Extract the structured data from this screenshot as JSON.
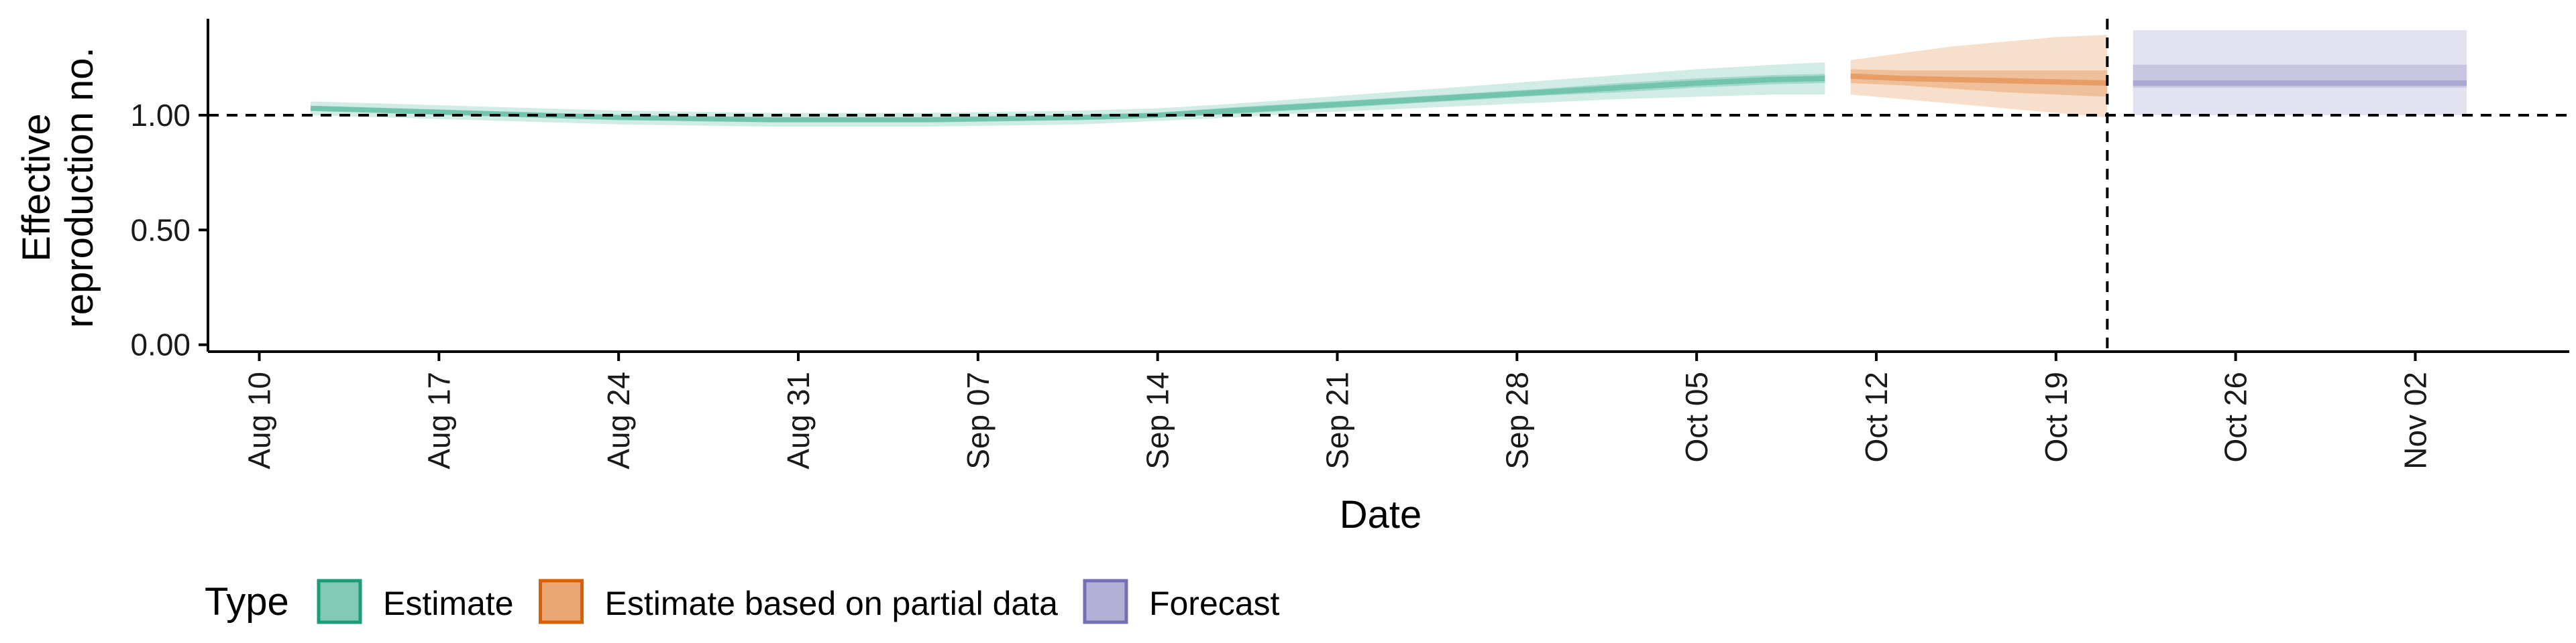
{
  "chart_data": {
    "type": "area",
    "title": "",
    "xlabel": "Date",
    "ylabel": [
      "Effective",
      "reproduction no."
    ],
    "x_ticks": [
      "Aug 10",
      "Aug 17",
      "Aug 24",
      "Aug 31",
      "Sep 07",
      "Sep 14",
      "Sep 21",
      "Sep 28",
      "Oct 05",
      "Oct 12",
      "Oct 19",
      "Oct 26",
      "Nov 02"
    ],
    "x_ticks_dates": [
      "2020-08-10",
      "2020-08-17",
      "2020-08-24",
      "2020-08-31",
      "2020-09-07",
      "2020-09-14",
      "2020-09-21",
      "2020-09-28",
      "2020-10-05",
      "2020-10-12",
      "2020-10-19",
      "2020-10-26",
      "2020-11-02"
    ],
    "xlim": [
      "2020-08-08",
      "2020-11-08"
    ],
    "y_ticks": [
      "0.00",
      "0.50",
      "1.00"
    ],
    "y_tick_values": [
      0,
      0.5,
      1.0
    ],
    "ylim": [
      -0.03,
      1.42
    ],
    "reference_line_y": 1.0,
    "forecast_start_line_x": "2020-10-21",
    "grid": false,
    "legend": {
      "title": "Type",
      "position": "bottom-left",
      "entries": [
        "Estimate",
        "Estimate based on partial data",
        "Forecast"
      ]
    },
    "colors": {
      "Estimate": "#1b9e77",
      "Estimate based on partial data": "#d95f02",
      "Forecast": "#7570b3"
    },
    "series": [
      {
        "name": "Estimate",
        "x": [
          "2020-08-12",
          "2020-08-15",
          "2020-08-18",
          "2020-08-21",
          "2020-08-24",
          "2020-08-27",
          "2020-08-30",
          "2020-09-02",
          "2020-09-05",
          "2020-09-08",
          "2020-09-11",
          "2020-09-14",
          "2020-09-17",
          "2020-09-20",
          "2020-09-23",
          "2020-09-26",
          "2020-09-29",
          "2020-10-02",
          "2020-10-05",
          "2020-10-08",
          "2020-10-10"
        ],
        "median": [
          1.03,
          1.02,
          1.01,
          1.0,
          0.99,
          0.985,
          0.98,
          0.98,
          0.98,
          0.985,
          0.99,
          1.0,
          1.02,
          1.04,
          1.06,
          1.08,
          1.1,
          1.12,
          1.14,
          1.155,
          1.16
        ],
        "lower_50": [
          1.02,
          1.01,
          1.0,
          0.99,
          0.98,
          0.975,
          0.97,
          0.97,
          0.97,
          0.975,
          0.98,
          0.99,
          1.005,
          1.025,
          1.045,
          1.065,
          1.085,
          1.1,
          1.12,
          1.135,
          1.14
        ],
        "upper_50": [
          1.04,
          1.03,
          1.02,
          1.01,
          1.0,
          0.995,
          0.99,
          0.99,
          0.99,
          0.995,
          1.0,
          1.01,
          1.035,
          1.055,
          1.075,
          1.095,
          1.115,
          1.14,
          1.16,
          1.175,
          1.18
        ],
        "lower_90": [
          1.0,
          0.99,
          0.98,
          0.97,
          0.96,
          0.955,
          0.95,
          0.95,
          0.95,
          0.955,
          0.96,
          0.975,
          0.99,
          1.01,
          1.025,
          1.04,
          1.055,
          1.07,
          1.08,
          1.09,
          1.09
        ],
        "upper_90": [
          1.06,
          1.05,
          1.04,
          1.03,
          1.02,
          1.015,
          1.01,
          1.01,
          1.01,
          1.015,
          1.02,
          1.03,
          1.05,
          1.075,
          1.1,
          1.125,
          1.15,
          1.175,
          1.2,
          1.22,
          1.23
        ]
      },
      {
        "name": "Estimate based on partial data",
        "x": [
          "2020-10-11",
          "2020-10-13",
          "2020-10-15",
          "2020-10-17",
          "2020-10-19",
          "2020-10-21"
        ],
        "median": [
          1.17,
          1.16,
          1.155,
          1.15,
          1.145,
          1.14
        ],
        "lower_50": [
          1.14,
          1.13,
          1.115,
          1.1,
          1.09,
          1.08
        ],
        "upper_50": [
          1.2,
          1.195,
          1.195,
          1.195,
          1.195,
          1.195
        ],
        "lower_90": [
          1.09,
          1.07,
          1.05,
          1.03,
          1.01,
          0.99
        ],
        "upper_90": [
          1.24,
          1.27,
          1.3,
          1.32,
          1.34,
          1.35
        ]
      },
      {
        "name": "Forecast",
        "x": [
          "2020-10-22",
          "2020-11-04"
        ],
        "median": [
          1.14,
          1.14
        ],
        "lower_50": [
          1.12,
          1.12
        ],
        "upper_50": [
          1.22,
          1.22
        ],
        "lower_90": [
          1.0,
          1.0
        ],
        "upper_90": [
          1.37,
          1.37
        ]
      }
    ]
  }
}
